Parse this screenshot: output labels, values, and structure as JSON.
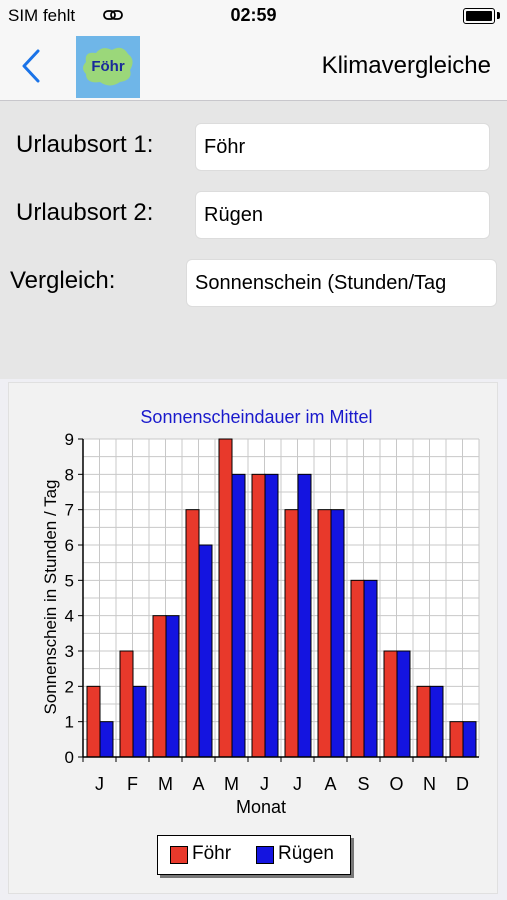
{
  "status_bar": {
    "carrier": "SIM fehlt",
    "time": "02:59"
  },
  "nav": {
    "logo_text": "Föhr",
    "title": "Klimavergleiche"
  },
  "form": {
    "place1_label": "Urlaubsort 1:",
    "place1_value": "Föhr",
    "place2_label": "Urlaubsort 2:",
    "place2_value": "Rügen",
    "compare_label": "Vergleich:",
    "compare_value": "Sonnenschein (Stunden/Tag"
  },
  "colors": {
    "foehr": "#e8392b",
    "ruegen": "#1414e0",
    "title": "#1a1acc",
    "grid": "#c8c8c8"
  },
  "chart_data": {
    "type": "bar",
    "title": "Sonnenscheindauer im Mittel",
    "xlabel": "Monat",
    "ylabel": "Sonnenschein in Stunden / Tag",
    "categories": [
      "J",
      "F",
      "M",
      "A",
      "M",
      "J",
      "J",
      "A",
      "S",
      "O",
      "N",
      "D"
    ],
    "series": [
      {
        "name": "Föhr",
        "values": [
          2,
          3,
          4,
          7,
          9,
          8,
          7,
          7,
          5,
          3,
          2,
          1
        ]
      },
      {
        "name": "Rügen",
        "values": [
          1,
          2,
          4,
          6,
          8,
          8,
          8,
          7,
          5,
          3,
          2,
          1
        ]
      }
    ],
    "ylim": [
      0,
      9
    ],
    "yticks": [
      0,
      1,
      2,
      3,
      4,
      5,
      6,
      7,
      8,
      9
    ],
    "grid": true,
    "legend": "bottom"
  }
}
